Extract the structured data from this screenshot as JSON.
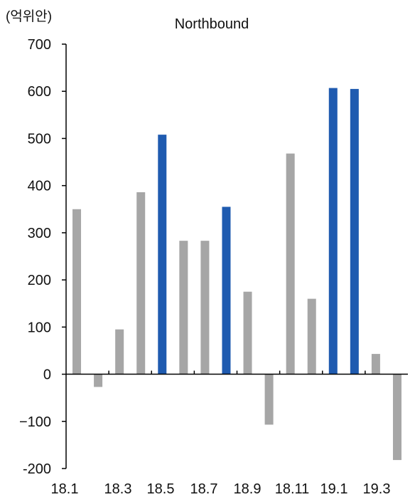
{
  "chart_data": {
    "type": "bar",
    "title": "Northbound",
    "unit_label": "(억위안)",
    "xlabel": "",
    "ylabel": "",
    "ylim": [
      -200,
      700
    ],
    "yticks": [
      700,
      600,
      500,
      400,
      300,
      200,
      100,
      0,
      -100,
      -200
    ],
    "ytick_labels": [
      "700",
      "600",
      "500",
      "400",
      "300",
      "200",
      "100",
      "0",
      "−100",
      "-200"
    ],
    "categories": [
      "18.1",
      "18.2",
      "18.3",
      "18.4",
      "18.5",
      "18.6",
      "18.7",
      "18.8",
      "18.9",
      "18.10",
      "18.11",
      "18.12",
      "19.1",
      "19.2",
      "19.3",
      "19.4"
    ],
    "xtick_labels": [
      "18.1",
      "18.3",
      "18.5",
      "18.7",
      "18.9",
      "18.11",
      "19.1",
      "19.3"
    ],
    "values": [
      350,
      -27,
      95,
      386,
      508,
      283,
      283,
      355,
      175,
      -107,
      468,
      160,
      607,
      605,
      43,
      -182
    ],
    "highlighted": [
      false,
      false,
      false,
      false,
      true,
      false,
      false,
      true,
      false,
      false,
      false,
      false,
      true,
      true,
      false,
      false
    ],
    "grid": false,
    "colors": {
      "base": "#a6a6a6",
      "highlight": "#1f5bb0",
      "axis": "#000000"
    }
  }
}
